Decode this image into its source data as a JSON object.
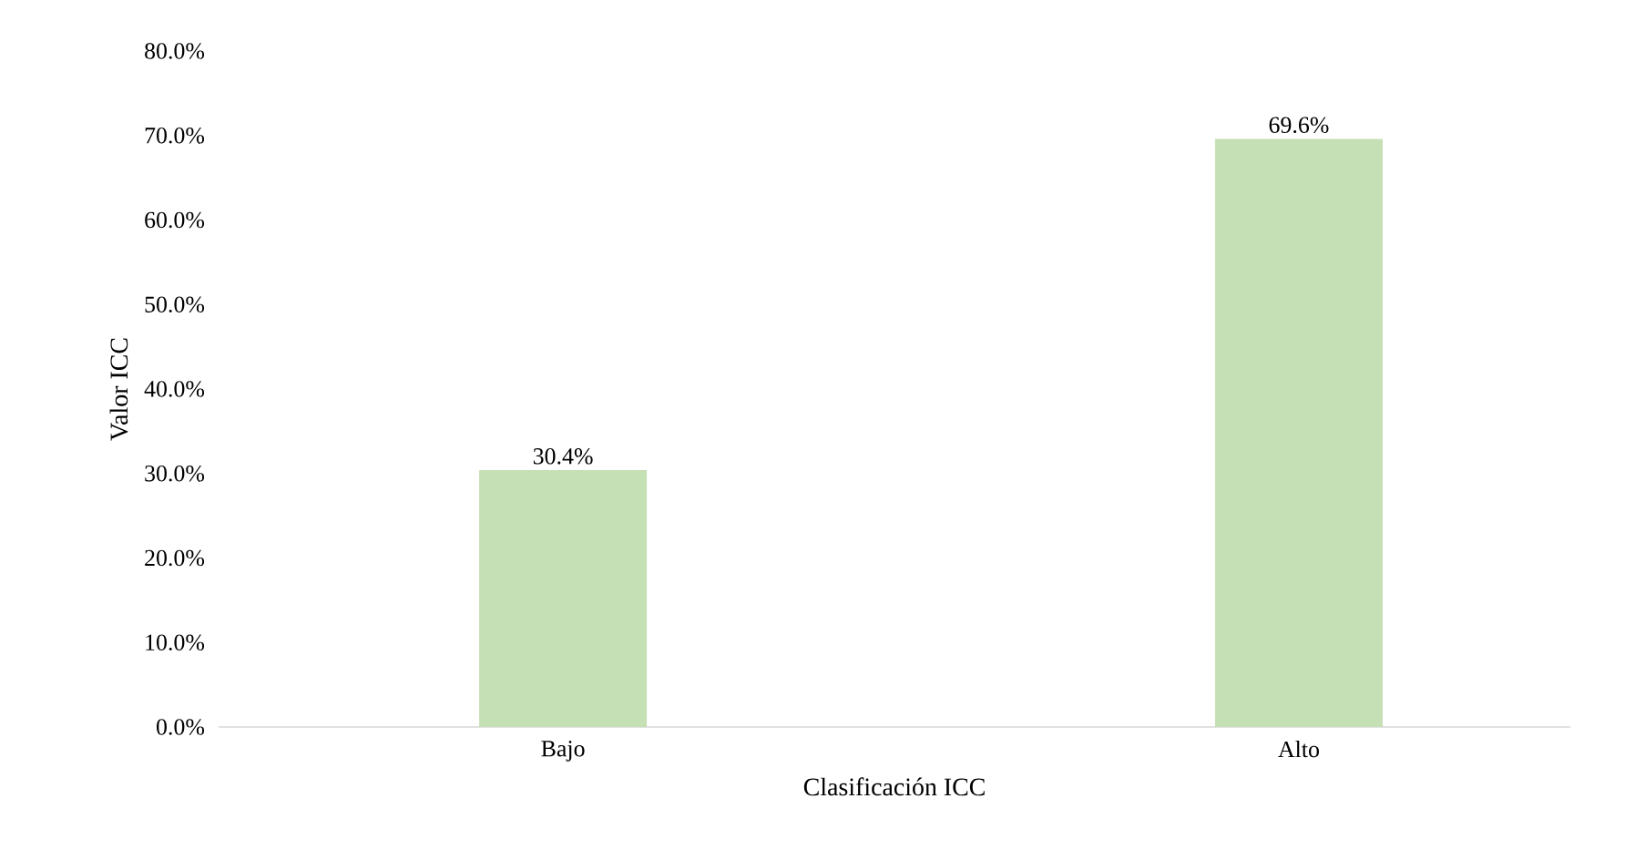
{
  "chart_data": {
    "type": "bar",
    "xlabel": "Clasificación ICC",
    "ylabel": "Valor ICC",
    "categories": [
      "Bajo",
      "Alto"
    ],
    "values": [
      30.4,
      69.6
    ],
    "value_labels": [
      "30.4%",
      "69.6%"
    ],
    "color": "#c5e0b4",
    "ylim": [
      0,
      80
    ],
    "yticks": [
      {
        "value": 0,
        "label": "0.0%"
      },
      {
        "value": 10,
        "label": "10.0%"
      },
      {
        "value": 20,
        "label": "20.0%"
      },
      {
        "value": 30,
        "label": "30.0%"
      },
      {
        "value": 40,
        "label": "40.0%"
      },
      {
        "value": 50,
        "label": "50.0%"
      },
      {
        "value": 60,
        "label": "60.0%"
      },
      {
        "value": 70,
        "label": "70.0%"
      },
      {
        "value": 80,
        "label": "80.0%"
      }
    ]
  }
}
